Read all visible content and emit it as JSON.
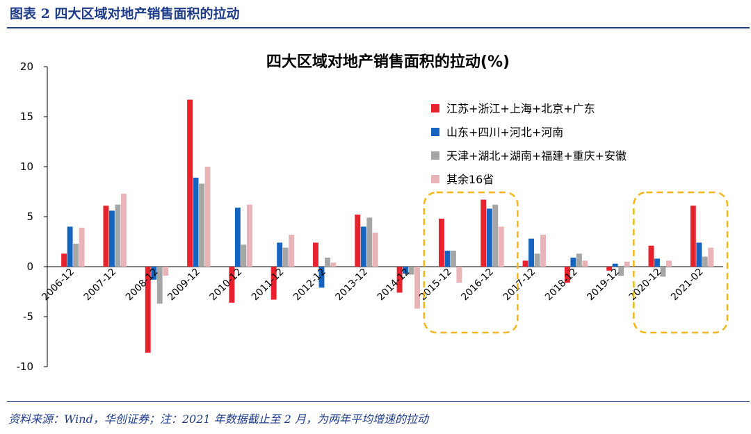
{
  "figure": {
    "title": "图表 2    四大区域对地产销售面积的拉动",
    "source": "资料来源：Wind，华创证券；注：2021 年数据截止至 2 月，为两年平均增速的拉动"
  },
  "colors": {
    "series": [
      "#e8222d",
      "#1565c0",
      "#a6a6a6",
      "#e8b4b8"
    ],
    "highlight": "#f2b619",
    "brand": "#1f3c88"
  },
  "chart_data": {
    "type": "bar",
    "title": "四大区域对地产销售面积的拉动(%)",
    "xlabel": "",
    "ylabel": "",
    "ylim": [
      -10,
      20
    ],
    "yticks": [
      -10,
      -5,
      0,
      5,
      10,
      15,
      20
    ],
    "grid": false,
    "legend_position": "top-right",
    "categories": [
      "2006-12",
      "2007-12",
      "2008-12",
      "2009-12",
      "2010-12",
      "2011-12",
      "2012-12",
      "2013-12",
      "2014-12",
      "2015-12",
      "2016-12",
      "2017-12",
      "2018-12",
      "2019-12",
      "2020-12",
      "2021-02"
    ],
    "series": [
      {
        "name": "江苏+浙江+上海+北京+广东",
        "values": [
          1.3,
          6.1,
          -8.6,
          16.7,
          -3.6,
          -3.3,
          2.4,
          5.2,
          -2.6,
          4.8,
          6.7,
          0.6,
          -1.6,
          -0.4,
          2.1,
          6.1
        ]
      },
      {
        "name": "山东+四川+河北+河南",
        "values": [
          4.0,
          5.6,
          -1.3,
          8.9,
          5.9,
          2.4,
          -2.1,
          4.0,
          -0.7,
          1.6,
          5.8,
          2.8,
          0.9,
          0.3,
          0.8,
          2.4
        ]
      },
      {
        "name": "天津+湖北+湖南+福建+重庆+安徽",
        "values": [
          2.3,
          6.2,
          -3.7,
          8.3,
          2.2,
          1.9,
          0.9,
          4.9,
          -0.8,
          1.6,
          6.2,
          1.3,
          1.3,
          -0.9,
          -1.0,
          1.0
        ]
      },
      {
        "name": "其余16省",
        "values": [
          3.9,
          7.3,
          -0.9,
          10.0,
          6.2,
          3.2,
          0.4,
          3.4,
          -4.2,
          -1.6,
          4.0,
          3.2,
          0.6,
          0.5,
          0.6,
          1.9
        ]
      }
    ],
    "highlight_groups": [
      [
        "2015-12",
        "2016-12"
      ],
      [
        "2020-12",
        "2021-02"
      ]
    ]
  }
}
